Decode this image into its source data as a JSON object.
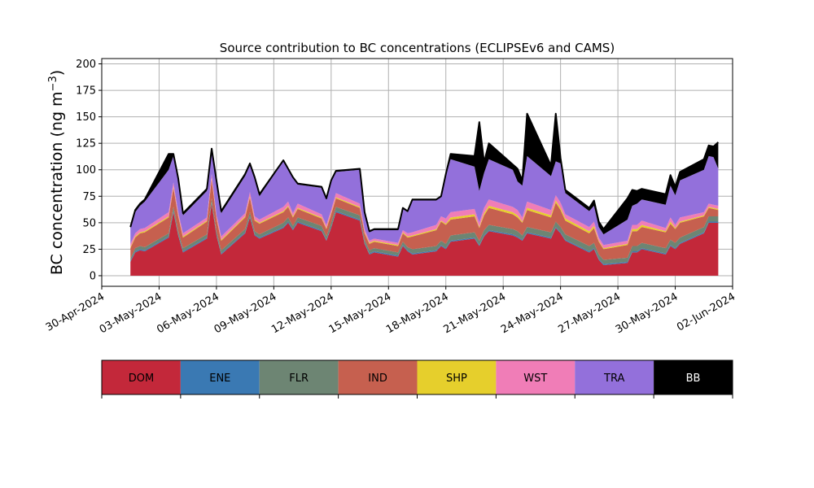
{
  "chart_data": {
    "type": "area",
    "stacked": true,
    "title": "Source contribution to BC concentrations (ECLIPSEv6 and CAMS)",
    "ylabel": "BC concentration (ng m⁻³)",
    "ylabel_base": "BC concentration (ng m",
    "ylabel_sup": "−3",
    "ylabel_end": ")",
    "xlabel": "",
    "ylim": [
      -10,
      205
    ],
    "xlim": [
      "2024-04-30",
      "2024-06-02"
    ],
    "grid": true,
    "total_outline_color": "#000000",
    "yticks": [
      0,
      25,
      50,
      75,
      100,
      125,
      150,
      175,
      200
    ],
    "xticks": [
      "30-Apr-2024",
      "03-May-2024",
      "06-May-2024",
      "09-May-2024",
      "12-May-2024",
      "15-May-2024",
      "18-May-2024",
      "21-May-2024",
      "24-May-2024",
      "27-May-2024",
      "30-May-2024",
      "02-Jun-2024"
    ],
    "x_dates": [
      "2024-05-01",
      "2024-05-01",
      "2024-05-02",
      "2024-05-02",
      "2024-05-03",
      "2024-05-03",
      "2024-05-04",
      "2024-05-04",
      "2024-05-05",
      "2024-05-05",
      "2024-05-06",
      "2024-05-06",
      "2024-05-07",
      "2024-05-07",
      "2024-05-08",
      "2024-05-08",
      "2024-05-09",
      "2024-05-09",
      "2024-05-10",
      "2024-05-10",
      "2024-05-11",
      "2024-05-11",
      "2024-05-12",
      "2024-05-12",
      "2024-05-13",
      "2024-05-13",
      "2024-05-14",
      "2024-05-14",
      "2024-05-15",
      "2024-05-15",
      "2024-05-16",
      "2024-05-16",
      "2024-05-17",
      "2024-05-17",
      "2024-05-18",
      "2024-05-18",
      "2024-05-19",
      "2024-05-19",
      "2024-05-20",
      "2024-05-20",
      "2024-05-21",
      "2024-05-21",
      "2024-05-22",
      "2024-05-22",
      "2024-05-23",
      "2024-05-23",
      "2024-05-24",
      "2024-05-24",
      "2024-05-25",
      "2024-05-25",
      "2024-05-26",
      "2024-05-26",
      "2024-05-27",
      "2024-05-27",
      "2024-05-28",
      "2024-05-28",
      "2024-05-29",
      "2024-05-29",
      "2024-05-30",
      "2024-05-30",
      "2024-05-31",
      "2024-05-31",
      "2024-06-01",
      "2024-06-01"
    ],
    "x_hours": [
      12,
      18,
      0,
      6,
      12,
      18,
      0,
      6,
      12,
      18,
      0,
      6,
      12,
      18,
      0,
      6,
      12,
      18,
      0,
      6,
      12,
      18,
      0,
      6,
      12,
      18,
      0,
      6,
      12,
      18,
      0,
      6,
      12,
      18,
      0,
      6,
      12,
      18,
      0,
      6,
      12,
      18,
      0,
      6,
      12,
      18,
      0,
      6,
      12,
      18,
      0,
      6,
      12,
      18,
      0,
      6,
      12,
      18,
      0,
      6,
      12,
      18,
      0,
      6
    ],
    "series": [
      {
        "name": "DOM",
        "color": "#c3283a",
        "values": [
          13,
          22,
          24,
          23,
          36,
          60,
          38,
          22,
          35,
          68,
          38,
          20,
          40,
          55,
          38,
          35,
          45,
          50,
          43,
          50,
          42,
          33,
          45,
          60,
          52,
          30,
          20,
          22,
          18,
          28,
          23,
          20,
          23,
          28,
          25,
          32,
          35,
          28,
          37,
          42,
          38,
          36,
          33,
          40,
          35,
          45,
          40,
          33,
          22,
          25,
          15,
          10,
          12,
          22,
          22,
          25,
          20,
          28,
          25,
          30,
          40,
          50,
          50,
          50
        ]
      },
      {
        "name": "ENE",
        "color": "#3a79b3",
        "values": [
          1,
          1,
          1,
          1,
          1,
          1,
          1,
          1,
          1,
          1,
          1,
          1,
          1,
          1,
          1,
          1,
          1,
          1,
          1,
          1,
          1,
          1,
          1,
          1,
          1,
          1,
          1,
          1,
          1,
          1,
          1,
          1,
          1,
          1,
          1,
          1,
          1,
          1,
          1,
          1,
          1,
          1,
          1,
          1,
          1,
          1,
          1,
          1,
          1,
          1,
          1,
          1,
          1,
          1,
          1,
          1,
          1,
          1,
          1,
          1,
          1,
          1,
          1,
          1
        ]
      },
      {
        "name": "FLR",
        "color": "#6d8573",
        "values": [
          2,
          3,
          3,
          3,
          3,
          4,
          3,
          3,
          3,
          4,
          3,
          3,
          3,
          4,
          3,
          3,
          4,
          4,
          3,
          4,
          4,
          3,
          4,
          4,
          4,
          3,
          3,
          3,
          3,
          3,
          3,
          4,
          4,
          4,
          4,
          5,
          5,
          4,
          5,
          5,
          5,
          5,
          4,
          5,
          5,
          5,
          5,
          5,
          5,
          5,
          4,
          4,
          4,
          5,
          5,
          5,
          5,
          5,
          5,
          5,
          5,
          5,
          5,
          5
        ]
      },
      {
        "name": "IND",
        "color": "#c6604f",
        "values": [
          10,
          10,
          12,
          14,
          15,
          18,
          14,
          10,
          12,
          18,
          12,
          9,
          11,
          14,
          10,
          10,
          10,
          10,
          8,
          8,
          7,
          7,
          8,
          8,
          7,
          6,
          6,
          6,
          6,
          8,
          9,
          12,
          15,
          18,
          18,
          15,
          15,
          12,
          14,
          16,
          14,
          13,
          12,
          16,
          14,
          18,
          16,
          13,
          12,
          14,
          12,
          10,
          12,
          14,
          14,
          15,
          15,
          15,
          13,
          14,
          10,
          8,
          7,
          6
        ]
      },
      {
        "name": "SHP",
        "color": "#e6cf2c",
        "values": [
          1,
          1,
          1,
          1,
          1,
          1,
          1,
          1,
          1,
          1,
          1,
          1,
          1,
          1,
          1,
          1,
          1,
          1,
          1,
          1,
          1,
          1,
          1,
          1,
          1,
          1,
          1,
          1,
          1,
          1,
          1,
          1,
          1,
          1,
          1,
          2,
          2,
          1,
          2,
          2,
          2,
          2,
          1,
          2,
          2,
          2,
          2,
          2,
          2,
          2,
          1,
          1,
          1,
          2,
          2,
          2,
          1,
          2,
          1,
          1,
          1,
          1,
          1,
          1
        ]
      },
      {
        "name": "WST",
        "color": "#f07db7",
        "values": [
          3,
          3,
          3,
          3,
          4,
          4,
          3,
          3,
          3,
          4,
          3,
          3,
          3,
          4,
          3,
          3,
          4,
          4,
          3,
          4,
          3,
          3,
          3,
          4,
          3,
          3,
          2,
          2,
          2,
          2,
          3,
          3,
          4,
          4,
          5,
          5,
          5,
          4,
          5,
          6,
          5,
          5,
          4,
          6,
          5,
          5,
          5,
          4,
          4,
          4,
          3,
          3,
          3,
          4,
          4,
          4,
          3,
          4,
          3,
          4,
          3,
          3,
          3,
          3
        ]
      },
      {
        "name": "TRA",
        "color": "#9370db",
        "values": [
          15,
          20,
          22,
          25,
          40,
          25,
          30,
          17,
          25,
          22,
          30,
          22,
          35,
          25,
          35,
          22,
          43,
          30,
          33,
          18,
          25,
          24,
          27,
          20,
          32,
          15,
          8,
          8,
          12,
          20,
          20,
          30,
          23,
          18,
          40,
          50,
          40,
          30,
          33,
          38,
          35,
          27,
          30,
          43,
          32,
          32,
          37,
          20,
          15,
          15,
          10,
          10,
          20,
          18,
          20,
          20,
          22,
          30,
          28,
          35,
          40,
          45,
          45,
          35
        ]
      },
      {
        "name": "BB",
        "color": "#000000",
        "values": [
          1,
          2,
          2,
          2,
          15,
          2,
          2,
          2,
          2,
          2,
          2,
          2,
          2,
          2,
          2,
          2,
          1,
          1,
          1,
          1,
          1,
          1,
          1,
          1,
          1,
          1,
          1,
          1,
          1,
          1,
          1,
          1,
          1,
          1,
          2,
          5,
          10,
          65,
          10,
          15,
          5,
          12,
          5,
          40,
          10,
          45,
          5,
          3,
          3,
          5,
          5,
          5,
          20,
          15,
          12,
          10,
          10,
          10,
          8,
          8,
          10,
          10,
          10,
          25
        ]
      }
    ]
  },
  "legend": {
    "items": [
      {
        "label": "DOM",
        "color": "#c3283a",
        "text_color": "#000000"
      },
      {
        "label": "ENE",
        "color": "#3a79b3",
        "text_color": "#000000"
      },
      {
        "label": "FLR",
        "color": "#6d8573",
        "text_color": "#000000"
      },
      {
        "label": "IND",
        "color": "#c6604f",
        "text_color": "#000000"
      },
      {
        "label": "SHP",
        "color": "#e6cf2c",
        "text_color": "#000000"
      },
      {
        "label": "WST",
        "color": "#f07db7",
        "text_color": "#000000"
      },
      {
        "label": "TRA",
        "color": "#9370db",
        "text_color": "#000000"
      },
      {
        "label": "BB",
        "color": "#000000",
        "text_color": "#ffffff"
      }
    ]
  }
}
